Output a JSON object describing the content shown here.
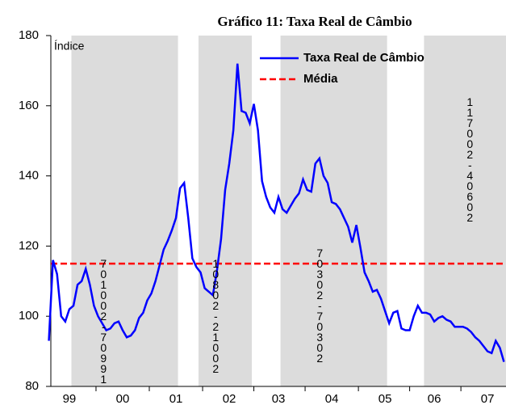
{
  "chart_data": {
    "type": "line",
    "title": "Gráfico 11: Taxa Real de Câmbio",
    "y_label": "Índice",
    "categories": [
      null,
      null,
      null,
      null,
      null,
      "99",
      null,
      null,
      null,
      null,
      null,
      null,
      null,
      null,
      null,
      null,
      null,
      null,
      "00",
      null,
      null,
      null,
      null,
      null,
      null,
      null,
      null,
      null,
      null,
      null,
      null,
      "01",
      null,
      null,
      null,
      null,
      null,
      null,
      null,
      null,
      null,
      null,
      null,
      null,
      "02",
      null,
      null,
      null,
      null,
      null,
      null,
      null,
      null,
      null,
      null,
      null,
      "03",
      null,
      null,
      null,
      null,
      null,
      null,
      null,
      null,
      null,
      null,
      null,
      null,
      "04",
      null,
      null,
      null,
      null,
      null,
      null,
      null,
      null,
      null,
      null,
      null,
      null,
      "05",
      null,
      null,
      null,
      null,
      null,
      null,
      null,
      null,
      null,
      null,
      null,
      "06",
      null,
      null,
      null,
      null,
      null,
      null,
      null,
      null,
      null,
      null,
      null,
      null,
      "07",
      null,
      null,
      null,
      null
    ],
    "series": [
      {
        "name": "Taxa Real de Câmbio",
        "color": "#0000ff",
        "values": [
          93,
          116,
          112,
          100,
          98.5,
          102,
          103,
          109,
          110,
          113.5,
          109,
          103,
          100,
          98,
          96,
          96.5,
          98,
          98.5,
          96,
          94,
          94.5,
          96,
          99.5,
          101,
          104.5,
          106.5,
          110,
          114.5,
          119,
          121.5,
          124.5,
          128,
          136.5,
          138,
          128,
          116.5,
          114,
          112.5,
          108,
          107,
          106,
          113,
          122,
          136,
          143.5,
          153,
          172,
          158.5,
          158,
          155,
          160.5,
          153,
          138.5,
          134,
          131,
          129.5,
          134,
          130.5,
          129.5,
          131.5,
          133.5,
          135,
          139,
          136,
          135.5,
          143.5,
          145,
          140,
          138,
          132.5,
          132,
          130.5,
          128,
          125.5,
          121,
          126,
          119.5,
          112.5,
          110,
          107,
          107.5,
          105,
          101.5,
          98,
          101,
          101.5,
          96.5,
          96,
          96,
          100,
          103,
          101,
          101,
          100.5,
          98.5,
          99.5,
          100,
          99,
          98.5,
          97,
          97,
          97,
          96.5,
          95.5,
          94,
          93,
          91.5,
          90,
          89.5,
          93,
          91,
          87
        ]
      }
    ],
    "reference_lines": [
      {
        "name": "Média",
        "color": "#ff0000",
        "value": 115
      }
    ],
    "shaded_periods": [
      [
        6,
        32
      ],
      [
        37,
        50
      ],
      [
        57,
        83
      ],
      [
        92,
        112
      ]
    ],
    "shade_color": "#dcdcdc",
    "annotations": [
      "701002-70991",
      "10802-21002",
      "70302-70302",
      "117002-40602"
    ],
    "ylim": [
      80,
      180
    ],
    "yticks": [
      80,
      100,
      120,
      140,
      160,
      180
    ],
    "legend": "upper right"
  }
}
